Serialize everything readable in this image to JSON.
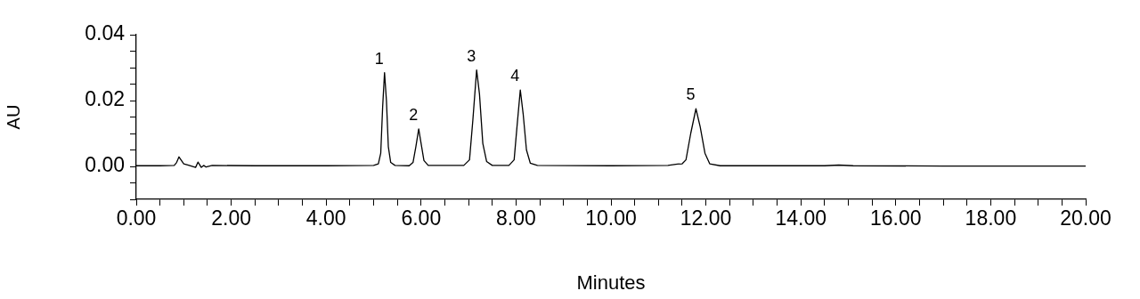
{
  "chart_data": {
    "type": "line",
    "xlabel": "Minutes",
    "ylabel": "AU",
    "xlim": [
      0,
      20
    ],
    "ylim": [
      -0.01,
      0.04
    ],
    "xticks": [
      {
        "value": 0,
        "label": "0.00"
      },
      {
        "value": 0.5,
        "label": null
      },
      {
        "value": 1,
        "label": null
      },
      {
        "value": 1.5,
        "label": null
      },
      {
        "value": 2,
        "label": "2.00"
      },
      {
        "value": 2.5,
        "label": null
      },
      {
        "value": 3,
        "label": null
      },
      {
        "value": 3.5,
        "label": null
      },
      {
        "value": 4,
        "label": "4.00"
      },
      {
        "value": 4.5,
        "label": null
      },
      {
        "value": 5,
        "label": null
      },
      {
        "value": 5.5,
        "label": null
      },
      {
        "value": 6,
        "label": "6.00"
      },
      {
        "value": 6.5,
        "label": null
      },
      {
        "value": 7,
        "label": null
      },
      {
        "value": 7.5,
        "label": null
      },
      {
        "value": 8,
        "label": "8.00"
      },
      {
        "value": 8.5,
        "label": null
      },
      {
        "value": 9,
        "label": null
      },
      {
        "value": 9.5,
        "label": null
      },
      {
        "value": 10,
        "label": "10.00"
      },
      {
        "value": 10.5,
        "label": null
      },
      {
        "value": 11,
        "label": null
      },
      {
        "value": 11.5,
        "label": null
      },
      {
        "value": 12,
        "label": "12.00"
      },
      {
        "value": 12.5,
        "label": null
      },
      {
        "value": 13,
        "label": null
      },
      {
        "value": 13.5,
        "label": null
      },
      {
        "value": 14,
        "label": "14.00"
      },
      {
        "value": 14.5,
        "label": null
      },
      {
        "value": 15,
        "label": null
      },
      {
        "value": 15.5,
        "label": null
      },
      {
        "value": 16,
        "label": "16.00"
      },
      {
        "value": 16.5,
        "label": null
      },
      {
        "value": 17,
        "label": null
      },
      {
        "value": 17.5,
        "label": null
      },
      {
        "value": 18,
        "label": "18.00"
      },
      {
        "value": 18.5,
        "label": null
      },
      {
        "value": 19,
        "label": null
      },
      {
        "value": 19.5,
        "label": null
      },
      {
        "value": 20,
        "label": "20.00"
      }
    ],
    "yticks": [
      {
        "value": -0.01,
        "label": null
      },
      {
        "value": -0.005,
        "label": null
      },
      {
        "value": 0,
        "label": "0.00"
      },
      {
        "value": 0.005,
        "label": null
      },
      {
        "value": 0.01,
        "label": null
      },
      {
        "value": 0.015,
        "label": null
      },
      {
        "value": 0.02,
        "label": "0.02"
      },
      {
        "value": 0.025,
        "label": null
      },
      {
        "value": 0.03,
        "label": null
      },
      {
        "value": 0.035,
        "label": null
      },
      {
        "value": 0.04,
        "label": "0.04"
      }
    ],
    "grid": false,
    "legend": false,
    "series": [
      {
        "color": "#000000",
        "x": [
          0,
          0.5,
          0.8,
          0.85,
          0.9,
          1.0,
          1.1,
          1.25,
          1.3,
          1.37,
          1.42,
          1.47,
          1.6,
          2.5,
          4.0,
          5.0,
          5.1,
          5.15,
          5.19,
          5.23,
          5.27,
          5.31,
          5.36,
          5.45,
          5.75,
          5.83,
          5.89,
          5.95,
          6.0,
          6.06,
          6.15,
          6.9,
          7.02,
          7.09,
          7.17,
          7.23,
          7.3,
          7.38,
          7.5,
          7.85,
          7.96,
          8.02,
          8.09,
          8.15,
          8.22,
          8.3,
          8.45,
          10.0,
          11.2,
          11.4,
          11.5,
          11.58,
          11.68,
          11.79,
          11.88,
          11.98,
          12.08,
          12.3,
          14.5,
          14.8,
          15.1,
          17.0,
          20.0
        ],
        "values": [
          0.0002,
          0.0002,
          0.0003,
          0.0012,
          0.0029,
          0.0008,
          0.0004,
          -0.0003,
          0.0013,
          -0.0003,
          0.0003,
          -0.0002,
          0.0003,
          0.0002,
          0.0002,
          0.0003,
          0.0008,
          0.004,
          0.018,
          0.0285,
          0.02,
          0.006,
          0.0012,
          0.0003,
          0.0002,
          0.0012,
          0.006,
          0.0114,
          0.007,
          0.0018,
          0.0003,
          0.0003,
          0.002,
          0.014,
          0.0293,
          0.022,
          0.007,
          0.0015,
          0.0003,
          0.0003,
          0.002,
          0.012,
          0.0232,
          0.016,
          0.005,
          0.001,
          0.0003,
          0.0002,
          0.0003,
          0.0007,
          0.0008,
          0.002,
          0.01,
          0.0175,
          0.012,
          0.004,
          0.0008,
          0.0002,
          0.0002,
          0.0004,
          0.0002,
          0.0001,
          0.0001
        ]
      }
    ],
    "annotations": [
      {
        "text": "1",
        "x": 5.23,
        "y": 0.0285
      },
      {
        "text": "2",
        "x": 5.95,
        "y": 0.0114
      },
      {
        "text": "3",
        "x": 7.17,
        "y": 0.0293
      },
      {
        "text": "4",
        "x": 8.09,
        "y": 0.0232
      },
      {
        "text": "5",
        "x": 11.79,
        "y": 0.0175
      }
    ]
  }
}
